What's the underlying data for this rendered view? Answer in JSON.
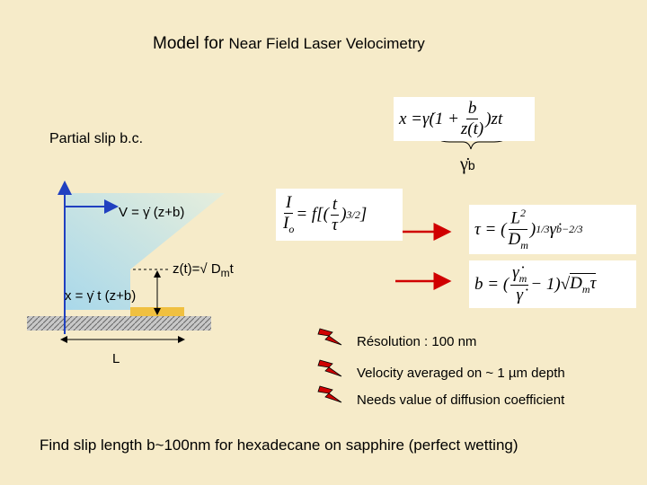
{
  "title": {
    "pre": "Model for ",
    "rest": "Near Field Laser Velocimetry"
  },
  "partial_slip": "Partial slip b.c.",
  "x_equation": {
    "lhs": "x = ",
    "pre": "γ̇(1 + ",
    "num": "b",
    "den": "z(t)",
    "post": ")zt"
  },
  "brace_label": {
    "sym": "γ̇",
    "sub": "b"
  },
  "velocity_label": "V = γ̇  (z+b)",
  "z_label": {
    "pre": "z(t)=√ D",
    "sub": "m",
    "post": "t"
  },
  "x_label": "x = γ̇ t (z+b)",
  "length_label": "L",
  "intensity_equation": {
    "num": "I",
    "den": "I",
    "den_sub": "o",
    "mid": " = f[(",
    "inner_num": "t",
    "inner_den": "τ",
    "post": ")",
    "sup": "3/2",
    "end": "]"
  },
  "tau_equation": {
    "lhs": "τ = (",
    "num": "L",
    "num_sup": "2",
    "den": "D",
    "den_sub": "m",
    "post": ")",
    "sup": "1/3",
    "mid": " γ̇",
    "sub": "b",
    "sup2": "−2/3"
  },
  "b_equation": {
    "lhs": "b = (",
    "num": "γ̇",
    "num_sub": "m",
    "den": "γ̇",
    "post": " − 1)",
    "root": "√",
    "rad": "D",
    "rad_sub": "m",
    "rad_end": "τ"
  },
  "bullets": [
    "Résolution : 100 nm",
    "Velocity averaged on  ~ 1 µm depth",
    "Needs value of diffusion coefficient"
  ],
  "conclusion": "Find slip length b~100nm for hexadecane on sapphire (perfect wetting)"
}
